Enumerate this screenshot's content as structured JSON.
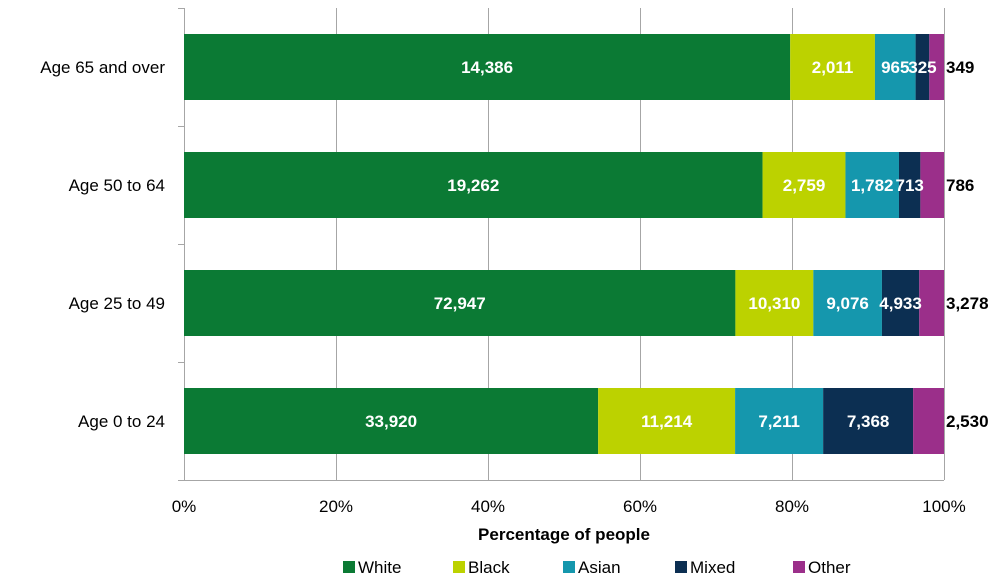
{
  "chart_data": {
    "type": "bar",
    "orientation": "horizontal",
    "stacked": "percent",
    "categories": [
      "Age 65 and over",
      "Age 50 to 64",
      "Age 25 to 49",
      "Age 0 to 24"
    ],
    "series": [
      {
        "name": "White",
        "color": "#0b7a34",
        "values": [
          14386,
          19262,
          72947,
          33920
        ],
        "labels": [
          "14,386",
          "19,262",
          "72,947",
          "33,920"
        ],
        "label_color": "#ffffff"
      },
      {
        "name": "Black",
        "color": "#bcd200",
        "values": [
          2011,
          2759,
          10310,
          11214
        ],
        "labels": [
          "2,011",
          "2,759",
          "10,310",
          "11,214"
        ],
        "label_color": "#ffffff"
      },
      {
        "name": "Asian",
        "color": "#1597ad",
        "values": [
          965,
          1782,
          9076,
          7211
        ],
        "labels": [
          "965",
          "1,782",
          "9,076",
          "7,211"
        ],
        "label_color": "#ffffff"
      },
      {
        "name": "Mixed",
        "color": "#0c2f52",
        "values": [
          325,
          713,
          4933,
          7368
        ],
        "labels": [
          "325",
          "713",
          "4,933",
          "7,368"
        ],
        "label_color": "#ffffff"
      },
      {
        "name": "Other",
        "color": "#9b2f8a",
        "values": [
          349,
          786,
          3278,
          2530
        ],
        "labels": [
          "349",
          "786",
          "3,278",
          "2,530"
        ],
        "label_color": "#000000"
      }
    ],
    "xlabel": "Percentage of people",
    "ylabel": "",
    "xlim": [
      0,
      100
    ],
    "xticks": [
      0,
      20,
      40,
      60,
      80,
      100
    ],
    "xtick_labels": [
      "0%",
      "20%",
      "40%",
      "60%",
      "80%",
      "100%"
    ],
    "grid": true,
    "legend_position": "bottom"
  }
}
